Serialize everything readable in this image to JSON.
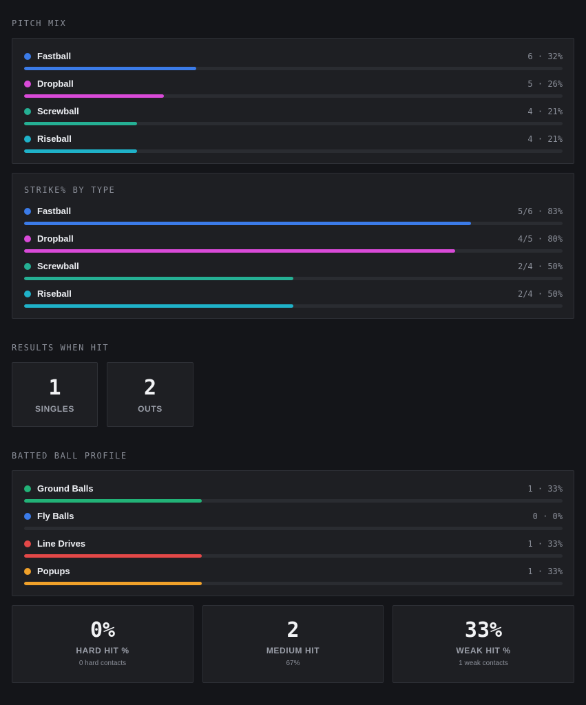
{
  "pitch_mix": {
    "title": "PITCH MIX",
    "items": [
      {
        "name": "Fastball",
        "stat": "6 · 32%",
        "fraction": 0.32,
        "color": "#3b7be8"
      },
      {
        "name": "Dropball",
        "stat": "5 · 26%",
        "fraction": 0.26,
        "color": "#d94ad8"
      },
      {
        "name": "Screwball",
        "stat": "4 · 21%",
        "fraction": 0.21,
        "color": "#25b094"
      },
      {
        "name": "Riseball",
        "stat": "4 · 21%",
        "fraction": 0.21,
        "color": "#1fb2c9"
      }
    ]
  },
  "strike_by_type": {
    "title": "STRIKE% BY TYPE",
    "items": [
      {
        "name": "Fastball",
        "stat": "5/6 · 83%",
        "fraction": 0.83,
        "color": "#3b7be8"
      },
      {
        "name": "Dropball",
        "stat": "4/5 · 80%",
        "fraction": 0.8,
        "color": "#d94ad8"
      },
      {
        "name": "Screwball",
        "stat": "2/4 · 50%",
        "fraction": 0.5,
        "color": "#25b094"
      },
      {
        "name": "Riseball",
        "stat": "2/4 · 50%",
        "fraction": 0.5,
        "color": "#1fb2c9"
      }
    ]
  },
  "results_when_hit": {
    "title": "RESULTS WHEN HIT",
    "items": [
      {
        "value": "1",
        "label": "SINGLES"
      },
      {
        "value": "2",
        "label": "OUTS"
      }
    ]
  },
  "batted_ball_profile": {
    "title": "BATTED BALL PROFILE",
    "items": [
      {
        "name": "Ground Balls",
        "stat": "1 · 33%",
        "fraction": 0.33,
        "color": "#22b277"
      },
      {
        "name": "Fly Balls",
        "stat": "0 · 0%",
        "fraction": 0.0,
        "color": "#3b7be8"
      },
      {
        "name": "Line Drives",
        "stat": "1 · 33%",
        "fraction": 0.33,
        "color": "#e34848"
      },
      {
        "name": "Popups",
        "stat": "1 · 33%",
        "fraction": 0.33,
        "color": "#f0a12a"
      }
    ]
  },
  "contact": {
    "items": [
      {
        "value": "0%",
        "label": "HARD HIT %",
        "sub": "0 hard contacts"
      },
      {
        "value": "2",
        "label": "MEDIUM HIT",
        "sub": "67%"
      },
      {
        "value": "33%",
        "label": "WEAK HIT %",
        "sub": "1 weak contacts"
      }
    ]
  }
}
